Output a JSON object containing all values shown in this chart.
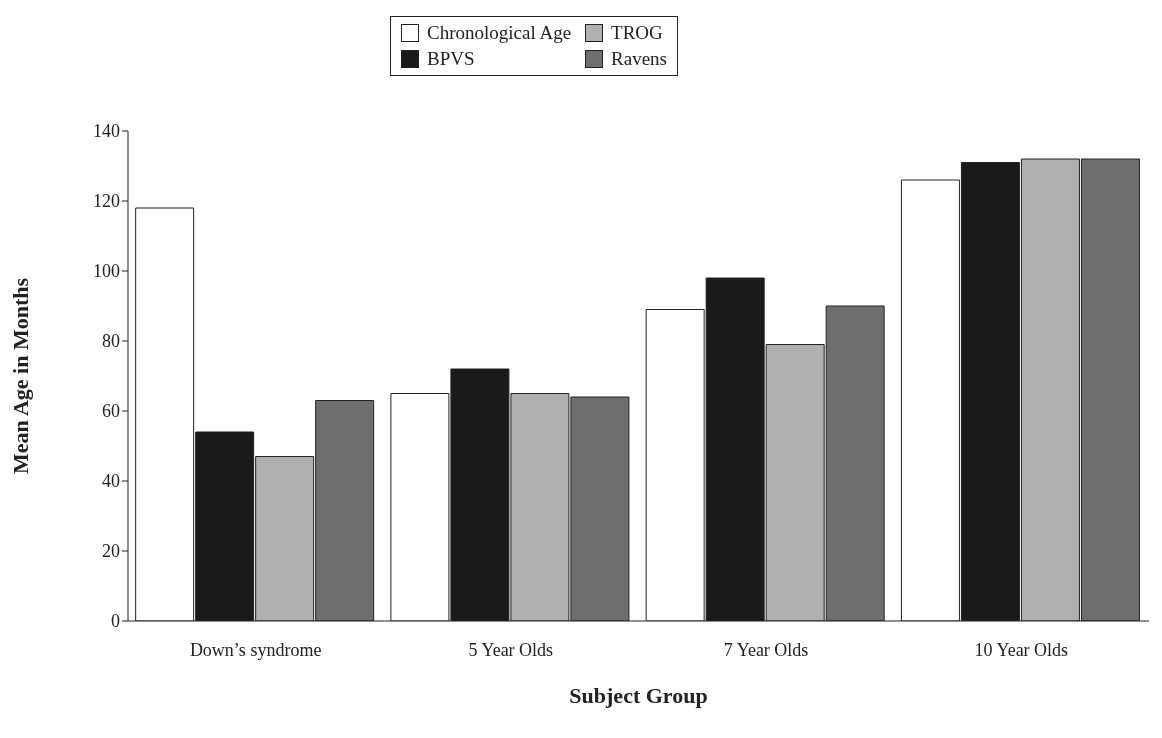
{
  "chart_data": {
    "type": "bar",
    "xlabel": "Subject Group",
    "ylabel": "Mean Age in Months",
    "categories": [
      "Down’s syndrome",
      "5 Year Olds",
      "7 Year Olds",
      "10 Year Olds"
    ],
    "series": [
      {
        "name": "Chronological Age",
        "color": "#ffffff",
        "values": [
          118,
          65,
          89,
          126
        ]
      },
      {
        "name": "BPVS",
        "color": "#1a1a1a",
        "values": [
          54,
          72,
          98,
          131
        ]
      },
      {
        "name": "TROG",
        "color": "#b0b0b0",
        "values": [
          47,
          65,
          79,
          132
        ]
      },
      {
        "name": "Ravens",
        "color": "#6e6e6e",
        "values": [
          63,
          64,
          90,
          132
        ]
      }
    ],
    "ylim": [
      0,
      140
    ],
    "yticks": [
      0,
      20,
      40,
      60,
      80,
      100,
      120,
      140
    ],
    "grid": false,
    "legend": "top"
  }
}
